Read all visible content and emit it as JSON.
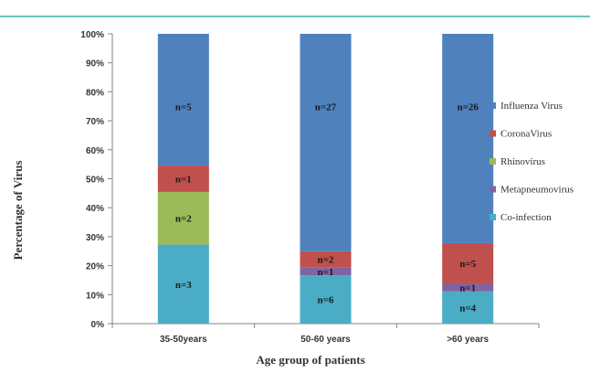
{
  "chart_data": {
    "type": "bar",
    "stacked": "percent",
    "title": "",
    "xlabel": "Age group of patients",
    "ylabel": "Percentage of Virus",
    "ylim": [
      0,
      100
    ],
    "yticks": [
      "0%",
      "10%",
      "20%",
      "30%",
      "40%",
      "50%",
      "60%",
      "70%",
      "80%",
      "90%",
      "100%"
    ],
    "categories": [
      "35-50years",
      "50-60 years",
      ">60 years"
    ],
    "series": [
      {
        "name": "Co-infection",
        "color": "#4bacc6",
        "values": [
          3,
          6,
          4
        ],
        "labels": [
          "n=3",
          "n=6",
          "n=4"
        ]
      },
      {
        "name": "Metapneumovirus",
        "color": "#8064a2",
        "values": [
          0,
          1,
          1
        ],
        "labels": [
          "",
          "n=1",
          "n=1"
        ]
      },
      {
        "name": "Rhinovirus",
        "color": "#9bbb59",
        "values": [
          2,
          0,
          0
        ],
        "labels": [
          "n=2",
          "",
          ""
        ]
      },
      {
        "name": "CoronaVirus",
        "color": "#c0504d",
        "values": [
          1,
          2,
          5
        ],
        "labels": [
          "n=1",
          "n=2",
          "n=5"
        ]
      },
      {
        "name": "Influenza Virus",
        "color": "#4f81bd",
        "values": [
          5,
          27,
          26
        ],
        "labels": [
          "n=5",
          "n=27",
          "n=26"
        ]
      }
    ],
    "legend": {
      "placement": "right",
      "order": [
        "Influenza Virus",
        "CoronaVirus",
        "Rhinovirus",
        "Metapneumovirus",
        "Co-infection"
      ]
    },
    "grid": false
  },
  "header_line_color": "#3aaf9f"
}
